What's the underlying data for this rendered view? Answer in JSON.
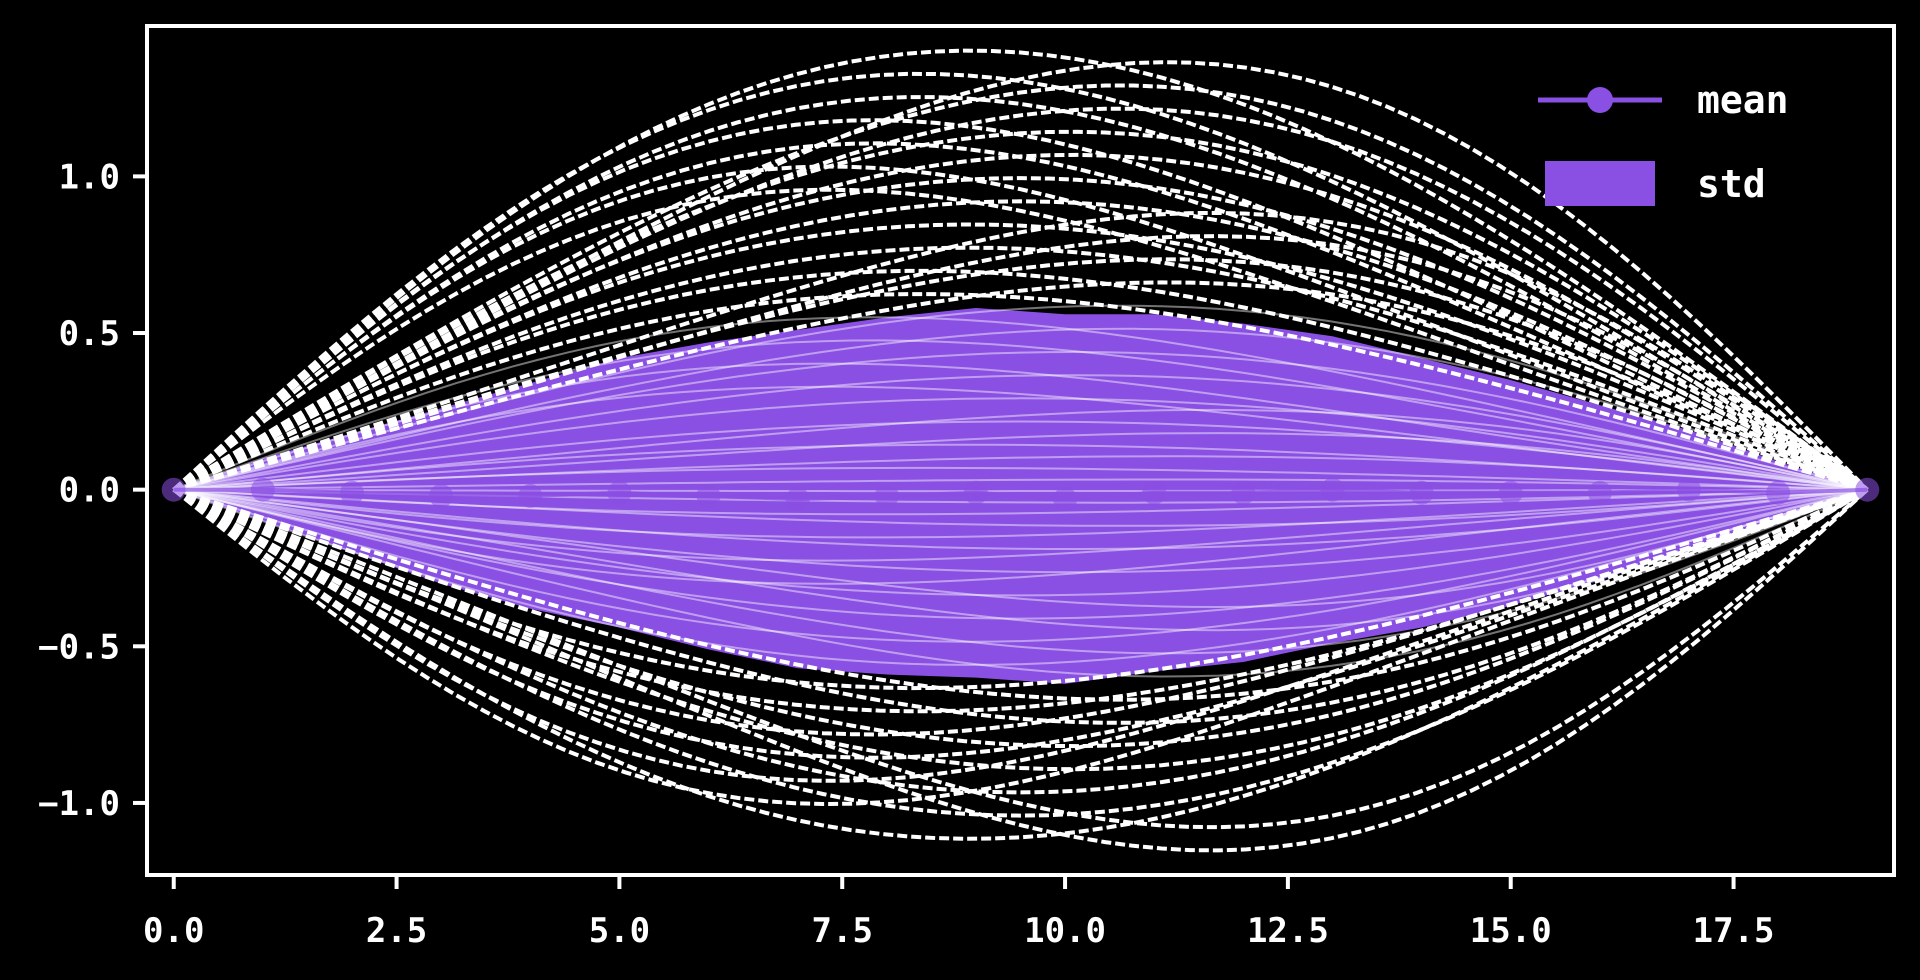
{
  "chart_data": {
    "type": "line",
    "title": "",
    "xlabel": "",
    "ylabel": "",
    "xlim": [
      -0.3,
      19.3
    ],
    "ylim": [
      -1.23,
      1.48
    ],
    "x_ticks": [
      {
        "value": 0.0,
        "label": "0.0"
      },
      {
        "value": 2.5,
        "label": "2.5"
      },
      {
        "value": 5.0,
        "label": "5.0"
      },
      {
        "value": 7.5,
        "label": "7.5"
      },
      {
        "value": 10.0,
        "label": "10.0"
      },
      {
        "value": 12.5,
        "label": "12.5"
      },
      {
        "value": 15.0,
        "label": "15.0"
      },
      {
        "value": 17.5,
        "label": "17.5"
      }
    ],
    "y_ticks": [
      {
        "value": 1.0,
        "label": "1.0"
      },
      {
        "value": 0.5,
        "label": "0.5"
      },
      {
        "value": 0.0,
        "label": "0.0"
      },
      {
        "value": -0.5,
        "label": "−0.5"
      },
      {
        "value": -1.0,
        "label": "−1.0"
      }
    ],
    "x": [
      0,
      1,
      2,
      3,
      4,
      5,
      6,
      7,
      8,
      9,
      10,
      11,
      12,
      13,
      14,
      15,
      16,
      17,
      18,
      19
    ],
    "series": [
      {
        "name": "mean",
        "values": [
          0.0,
          0.0,
          -0.01,
          -0.02,
          -0.02,
          -0.01,
          -0.02,
          -0.03,
          -0.02,
          -0.01,
          -0.03,
          -0.01,
          -0.01,
          0.0,
          -0.01,
          -0.01,
          -0.01,
          0.0,
          -0.01,
          0.0
        ]
      }
    ],
    "std_band": {
      "name": "std",
      "values": [
        0.0,
        0.1,
        0.19,
        0.28,
        0.36,
        0.43,
        0.49,
        0.54,
        0.57,
        0.59,
        0.59,
        0.57,
        0.54,
        0.49,
        0.43,
        0.36,
        0.28,
        0.19,
        0.1,
        0.0
      ]
    },
    "sample_paths": {
      "count": 70,
      "peak_amplitude_range": [
        -1.17,
        1.42
      ],
      "shape": "half-sine arcs from (0,0) to (19,0)"
    },
    "legend": {
      "placement": "top-right",
      "entries": [
        {
          "label": "mean",
          "kind": "line-marker"
        },
        {
          "label": "std",
          "kind": "patch"
        }
      ]
    },
    "grid": false,
    "colors": {
      "background": "#000000",
      "axes": "#ffffff",
      "paths": "#ffffff",
      "mean": "#8a4fe3",
      "std": "#8a4fe3"
    }
  }
}
